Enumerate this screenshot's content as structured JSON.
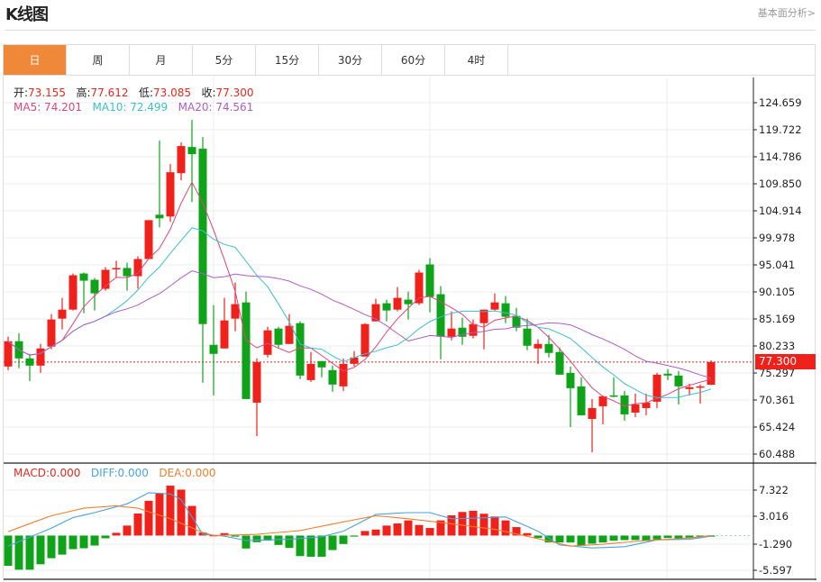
{
  "header": {
    "title": "K线图",
    "link": "基本面分析>"
  },
  "tabs": [
    {
      "label": "日",
      "active": true
    },
    {
      "label": "周"
    },
    {
      "label": "月"
    },
    {
      "label": "5分"
    },
    {
      "label": "15分"
    },
    {
      "label": "30分"
    },
    {
      "label": "60分"
    },
    {
      "label": "4时"
    }
  ],
  "ohlc_legend": {
    "open_label": "开:",
    "open": "73.155",
    "high_label": "高:",
    "high": "77.612",
    "low_label": "低:",
    "low": "73.085",
    "close_label": "收:",
    "close": "77.300"
  },
  "ma_legend": {
    "ma5": "MA5: 74.201",
    "ma10": "MA10: 72.499",
    "ma20": "MA20: 74.561"
  },
  "macd_legend": {
    "macd": "MACD:0.000",
    "diff": "DIFF:0.000",
    "dea": "DEA:0.000"
  },
  "current_price": "77.300",
  "colors": {
    "up": "#f0201a",
    "down": "#0fa31a",
    "ma5": "#e0457b",
    "ma10": "#3bbfd0",
    "ma20": "#b05cc8",
    "diff": "#4aa3df",
    "dea": "#f08030",
    "accent": "#f0883a"
  },
  "chart_data": {
    "type": "candlestick",
    "price_axis": {
      "labels": [
        "124.659",
        "119.722",
        "114.786",
        "109.850",
        "104.914",
        "99.978",
        "95.041",
        "90.105",
        "85.169",
        "80.233",
        "75.297",
        "70.361",
        "65.424",
        "60.488"
      ],
      "range": [
        60.488,
        124.659
      ]
    },
    "macd_axis": {
      "labels": [
        "7.322",
        "3.016",
        "-1.290",
        "-5.597"
      ],
      "range": [
        -5.597,
        7.322
      ]
    },
    "ohlc": [
      [
        76.48,
        81.92,
        75.82,
        81.1
      ],
      [
        81.1,
        82.58,
        76.15,
        77.96
      ],
      [
        77.96,
        78.79,
        73.84,
        76.64
      ],
      [
        76.64,
        80.6,
        75.32,
        79.78
      ],
      [
        80.11,
        86.05,
        79.62,
        85.06
      ],
      [
        85.23,
        89.02,
        83.24,
        86.87
      ],
      [
        86.87,
        93.47,
        86.71,
        93.14
      ],
      [
        93.47,
        93.64,
        86.22,
        92.15
      ],
      [
        92.32,
        92.65,
        86.71,
        89.84
      ],
      [
        90.67,
        94.63,
        90.34,
        94.14
      ],
      [
        94.3,
        95.79,
        92.65,
        94.47
      ],
      [
        94.47,
        95.46,
        90.34,
        92.98
      ],
      [
        92.98,
        96.61,
        90.67,
        96.11
      ],
      [
        96.11,
        103.21,
        96.11,
        103.21
      ],
      [
        104.2,
        117.73,
        101.89,
        103.54
      ],
      [
        103.87,
        113.44,
        102.88,
        111.96
      ],
      [
        111.79,
        117.4,
        110.47,
        116.74
      ],
      [
        116.57,
        121.53,
        106.51,
        115.26
      ],
      [
        116.25,
        118.39,
        73.51,
        84.23
      ],
      [
        80.44,
        87.7,
        71.2,
        78.79
      ],
      [
        79.78,
        89.02,
        79.78,
        84.9
      ],
      [
        85.23,
        91.83,
        82.92,
        87.87
      ],
      [
        88.19,
        90.17,
        70.54,
        70.54
      ],
      [
        69.88,
        77.96,
        63.77,
        77.3
      ],
      [
        78.62,
        83.74,
        78.13,
        83.08
      ],
      [
        83.41,
        83.74,
        79.95,
        80.44
      ],
      [
        80.6,
        86.05,
        80.6,
        83.91
      ],
      [
        84.4,
        84.73,
        74.17,
        74.83
      ],
      [
        74.0,
        79.12,
        73.67,
        76.97
      ],
      [
        77.47,
        77.47,
        74.5,
        76.32
      ],
      [
        75.82,
        76.64,
        71.86,
        73.18
      ],
      [
        72.85,
        77.96,
        72.03,
        76.97
      ],
      [
        76.97,
        79.29,
        76.48,
        78.13
      ],
      [
        78.3,
        84.4,
        78.3,
        84.23
      ],
      [
        84.73,
        88.85,
        84.73,
        87.87
      ],
      [
        88.03,
        88.69,
        84.73,
        86.71
      ],
      [
        86.87,
        90.99,
        86.55,
        89.02
      ],
      [
        88.69,
        90.17,
        85.06,
        87.87
      ],
      [
        88.03,
        94.14,
        87.7,
        93.64
      ],
      [
        95.12,
        96.28,
        86.38,
        89.19
      ],
      [
        89.68,
        91.16,
        77.8,
        81.92
      ],
      [
        81.92,
        86.55,
        81.26,
        83.41
      ],
      [
        83.57,
        85.39,
        80.44,
        81.92
      ],
      [
        82.09,
        85.06,
        81.6,
        84.23
      ],
      [
        84.4,
        86.87,
        79.62,
        86.87
      ],
      [
        86.87,
        89.84,
        86.71,
        88.19
      ],
      [
        88.03,
        89.35,
        84.4,
        85.56
      ],
      [
        85.72,
        87.2,
        82.92,
        83.57
      ],
      [
        83.41,
        85.23,
        79.45,
        80.27
      ],
      [
        79.78,
        81.43,
        76.97,
        80.6
      ],
      [
        80.6,
        82.25,
        78.13,
        78.96
      ],
      [
        79.12,
        79.95,
        74.99,
        74.99
      ],
      [
        75.32,
        76.48,
        65.43,
        72.52
      ],
      [
        72.85,
        74.5,
        67.57,
        67.57
      ],
      [
        66.91,
        70.54,
        60.81,
        68.89
      ],
      [
        69.22,
        71.2,
        65.92,
        71.04
      ],
      [
        71.2,
        74.5,
        70.87,
        71.04
      ],
      [
        71.2,
        72.03,
        66.58,
        67.74
      ],
      [
        68.06,
        71.53,
        67.24,
        69.55
      ],
      [
        68.89,
        71.53,
        67.57,
        69.88
      ],
      [
        70.05,
        75.32,
        68.89,
        74.99
      ],
      [
        75.16,
        75.99,
        74.0,
        74.83
      ],
      [
        74.83,
        75.66,
        69.55,
        72.85
      ],
      [
        72.36,
        73.34,
        71.2,
        72.69
      ],
      [
        72.69,
        73.18,
        69.72,
        72.85
      ],
      [
        73.155,
        77.612,
        73.085,
        77.3
      ]
    ],
    "macd_hist": [
      -4.87,
      -5.5,
      -5.5,
      -4.63,
      -3.65,
      -3.07,
      -2.19,
      -2.05,
      -1.61,
      -0.44,
      0.44,
      1.61,
      3.55,
      5.6,
      6.82,
      8.04,
      7.4,
      4.77,
      0.49,
      0.05,
      0.39,
      -0.15,
      -2.09,
      -1.07,
      -0.83,
      -1.51,
      -2.0,
      -3.31,
      -3.41,
      -3.41,
      -2.34,
      -1.36,
      -0.1,
      0.73,
      0.97,
      1.61,
      1.95,
      2.44,
      1.7,
      1.22,
      2.44,
      3.26,
      3.8,
      3.99,
      3.51,
      3.07,
      2.44,
      1.36,
      0.39,
      -0.39,
      -1.12,
      -1.12,
      -1.12,
      -1.61,
      -1.31,
      -1.12,
      -0.83,
      -0.73,
      -0.73,
      -0.88,
      -0.63,
      -0.39,
      -0.49,
      -0.34,
      -0.15,
      -0.1
    ],
    "diff_points": [
      [
        0,
        -1.7
      ],
      [
        4,
        1.2
      ],
      [
        6,
        2.9
      ],
      [
        8,
        3.7
      ],
      [
        11,
        5.1
      ],
      [
        13,
        6.9
      ],
      [
        15,
        6.7
      ],
      [
        16,
        5.8
      ],
      [
        18,
        0.2
      ],
      [
        20,
        -0.1
      ],
      [
        22,
        -0.8
      ],
      [
        26,
        -0.6
      ],
      [
        29,
        -0.2
      ],
      [
        31,
        0.7
      ],
      [
        34,
        3.4
      ],
      [
        37,
        3.7
      ],
      [
        39,
        3.7
      ],
      [
        41,
        2.7
      ],
      [
        43,
        2.8
      ],
      [
        46,
        3.0
      ],
      [
        49,
        0.7
      ],
      [
        51,
        -1.5
      ],
      [
        54,
        -2.0
      ],
      [
        57,
        -1.8
      ],
      [
        60,
        -0.7
      ],
      [
        63,
        -0.6
      ],
      [
        65,
        -0.1
      ]
    ],
    "dea_points": [
      [
        0,
        0.63
      ],
      [
        4,
        3.2
      ],
      [
        7,
        4.4
      ],
      [
        10,
        4.8
      ],
      [
        12,
        4.4
      ],
      [
        15,
        2.7
      ],
      [
        18,
        0.5
      ],
      [
        19,
        0.0
      ],
      [
        23,
        0.2
      ],
      [
        27,
        0.8
      ],
      [
        31,
        2.2
      ],
      [
        34,
        3.2
      ],
      [
        37,
        2.7
      ],
      [
        41,
        1.9
      ],
      [
        45,
        1.0
      ],
      [
        49,
        -0.5
      ],
      [
        52,
        -1.7
      ],
      [
        55,
        -1.4
      ],
      [
        59,
        -0.8
      ],
      [
        63,
        -0.4
      ],
      [
        65,
        0.0
      ]
    ]
  }
}
